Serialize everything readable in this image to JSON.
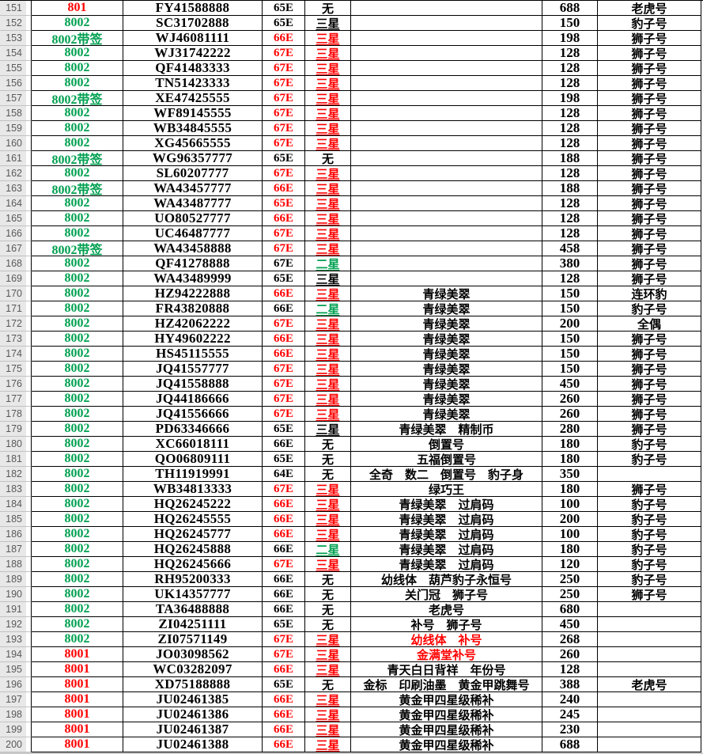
{
  "palette": {
    "red": "#FF0000",
    "green": "#00A050",
    "black": "#000000",
    "headerBg": "#E8E8E8",
    "headerText": "#595959",
    "gridline": "#000000",
    "bottomStrip": "#C9C9C9"
  },
  "table": {
    "rows": [
      {
        "num": "151",
        "code": "801",
        "codeColor": "red",
        "serial": "FY41588888",
        "ed": "65E",
        "edColor": "black",
        "star": "无",
        "starColor": "black",
        "desc": "",
        "descColor": "black",
        "price": "688",
        "type": "老虎号"
      },
      {
        "num": "152",
        "code": "8002",
        "codeColor": "green",
        "serial": "SC31702888",
        "ed": "65E",
        "edColor": "black",
        "star": "三星",
        "starColor": "black",
        "desc": "",
        "descColor": "black",
        "price": "150",
        "type": "豹子号"
      },
      {
        "num": "153",
        "code": "8002带签",
        "codeColor": "green",
        "serial": "WJ46081111",
        "ed": "66E",
        "edColor": "red",
        "star": "三星",
        "starColor": "red",
        "desc": "",
        "descColor": "black",
        "price": "198",
        "type": "狮子号"
      },
      {
        "num": "154",
        "code": "8002",
        "codeColor": "green",
        "serial": "WJ31742222",
        "ed": "67E",
        "edColor": "red",
        "star": "三星",
        "starColor": "red",
        "desc": "",
        "descColor": "black",
        "price": "128",
        "type": "狮子号"
      },
      {
        "num": "155",
        "code": "8002",
        "codeColor": "green",
        "serial": "QF41483333",
        "ed": "67E",
        "edColor": "red",
        "star": "三星",
        "starColor": "red",
        "desc": "",
        "descColor": "black",
        "price": "128",
        "type": "狮子号"
      },
      {
        "num": "156",
        "code": "8002",
        "codeColor": "green",
        "serial": "TN51423333",
        "ed": "67E",
        "edColor": "red",
        "star": "三星",
        "starColor": "red",
        "desc": "",
        "descColor": "black",
        "price": "128",
        "type": "狮子号"
      },
      {
        "num": "157",
        "code": "8002带签",
        "codeColor": "green",
        "serial": "XE47425555",
        "ed": "67E",
        "edColor": "red",
        "star": "三星",
        "starColor": "red",
        "desc": "",
        "descColor": "black",
        "price": "198",
        "type": "狮子号"
      },
      {
        "num": "158",
        "code": "8002",
        "codeColor": "green",
        "serial": "WF89145555",
        "ed": "67E",
        "edColor": "red",
        "star": "三星",
        "starColor": "red",
        "desc": "",
        "descColor": "black",
        "price": "128",
        "type": "狮子号"
      },
      {
        "num": "159",
        "code": "8002",
        "codeColor": "green",
        "serial": "WB34845555",
        "ed": "67E",
        "edColor": "red",
        "star": "三星",
        "starColor": "red",
        "desc": "",
        "descColor": "black",
        "price": "128",
        "type": "狮子号"
      },
      {
        "num": "160",
        "code": "8002",
        "codeColor": "green",
        "serial": "XG45665555",
        "ed": "67E",
        "edColor": "red",
        "star": "三星",
        "starColor": "red",
        "desc": "",
        "descColor": "black",
        "price": "128",
        "type": "狮子号"
      },
      {
        "num": "161",
        "code": "8002带签",
        "codeColor": "green",
        "serial": "WG96357777",
        "ed": "65E",
        "edColor": "black",
        "star": "无",
        "starColor": "black",
        "desc": "",
        "descColor": "black",
        "price": "188",
        "type": "狮子号"
      },
      {
        "num": "162",
        "code": "8002",
        "codeColor": "green",
        "serial": "SL60207777",
        "ed": "67E",
        "edColor": "red",
        "star": "三星",
        "starColor": "red",
        "desc": "",
        "descColor": "black",
        "price": "128",
        "type": "狮子号"
      },
      {
        "num": "163",
        "code": "8002带签",
        "codeColor": "green",
        "serial": "WA43457777",
        "ed": "66E",
        "edColor": "red",
        "star": "三星",
        "starColor": "red",
        "desc": "",
        "descColor": "black",
        "price": "188",
        "type": "狮子号"
      },
      {
        "num": "164",
        "code": "8002",
        "codeColor": "green",
        "serial": "WA43487777",
        "ed": "65E",
        "edColor": "red",
        "star": "三星",
        "starColor": "red",
        "desc": "",
        "descColor": "black",
        "price": "128",
        "type": "狮子号"
      },
      {
        "num": "165",
        "code": "8002",
        "codeColor": "green",
        "serial": "UO80527777",
        "ed": "66E",
        "edColor": "red",
        "star": "三星",
        "starColor": "red",
        "desc": "",
        "descColor": "black",
        "price": "128",
        "type": "狮子号"
      },
      {
        "num": "166",
        "code": "8002",
        "codeColor": "green",
        "serial": "UC46487777",
        "ed": "67E",
        "edColor": "red",
        "star": "三星",
        "starColor": "red",
        "desc": "",
        "descColor": "black",
        "price": "128",
        "type": "狮子号"
      },
      {
        "num": "167",
        "code": "8002带签",
        "codeColor": "green",
        "serial": "WA43458888",
        "ed": "67E",
        "edColor": "red",
        "star": "三星",
        "starColor": "red",
        "desc": "",
        "descColor": "black",
        "price": "458",
        "type": "狮子号"
      },
      {
        "num": "168",
        "code": "8002",
        "codeColor": "green",
        "serial": "QF41278888",
        "ed": "67E",
        "edColor": "black",
        "star": "二星",
        "starColor": "green",
        "desc": "",
        "descColor": "black",
        "price": "380",
        "type": "狮子号"
      },
      {
        "num": "169",
        "code": "8002",
        "codeColor": "green",
        "serial": "WA43489999",
        "ed": "65E",
        "edColor": "black",
        "star": "三星",
        "starColor": "black",
        "desc": "",
        "descColor": "black",
        "price": "128",
        "type": "狮子号"
      },
      {
        "num": "170",
        "code": "8002",
        "codeColor": "green",
        "serial": "HZ94222888",
        "ed": "66E",
        "edColor": "red",
        "star": "三星",
        "starColor": "red",
        "desc": "青绿美翠",
        "descColor": "black",
        "price": "150",
        "type": "连环豹"
      },
      {
        "num": "171",
        "code": "8002",
        "codeColor": "green",
        "serial": "FR43820888",
        "ed": "66E",
        "edColor": "black",
        "star": "二星",
        "starColor": "green",
        "desc": "青绿美翠",
        "descColor": "black",
        "price": "150",
        "type": "豹子号"
      },
      {
        "num": "172",
        "code": "8002",
        "codeColor": "green",
        "serial": "HZ42062222",
        "ed": "67E",
        "edColor": "red",
        "star": "三星",
        "starColor": "red",
        "desc": "青绿美翠",
        "descColor": "black",
        "price": "200",
        "type": "全偶"
      },
      {
        "num": "173",
        "code": "8002",
        "codeColor": "green",
        "serial": "HY49602222",
        "ed": "66E",
        "edColor": "red",
        "star": "三星",
        "starColor": "red",
        "desc": "青绿美翠",
        "descColor": "black",
        "price": "150",
        "type": "狮子号"
      },
      {
        "num": "174",
        "code": "8002",
        "codeColor": "green",
        "serial": "HS45115555",
        "ed": "66E",
        "edColor": "red",
        "star": "三星",
        "starColor": "red",
        "desc": "青绿美翠",
        "descColor": "black",
        "price": "150",
        "type": "狮子号"
      },
      {
        "num": "175",
        "code": "8002",
        "codeColor": "green",
        "serial": "JQ41557777",
        "ed": "67E",
        "edColor": "red",
        "star": "三星",
        "starColor": "red",
        "desc": "青绿美翠",
        "descColor": "black",
        "price": "150",
        "type": "狮子号"
      },
      {
        "num": "176",
        "code": "8002",
        "codeColor": "green",
        "serial": "JQ41558888",
        "ed": "67E",
        "edColor": "red",
        "star": "三星",
        "starColor": "red",
        "desc": "青绿美翠",
        "descColor": "black",
        "price": "450",
        "type": "狮子号"
      },
      {
        "num": "177",
        "code": "8002",
        "codeColor": "green",
        "serial": "JQ44186666",
        "ed": "67E",
        "edColor": "red",
        "star": "三星",
        "starColor": "red",
        "desc": "青绿美翠",
        "descColor": "black",
        "price": "260",
        "type": "狮子号"
      },
      {
        "num": "178",
        "code": "8002",
        "codeColor": "green",
        "serial": "JQ41556666",
        "ed": "67E",
        "edColor": "red",
        "star": "三星",
        "starColor": "red",
        "desc": "青绿美翠",
        "descColor": "black",
        "price": "260",
        "type": "狮子号"
      },
      {
        "num": "179",
        "code": "8002",
        "codeColor": "green",
        "serial": "PD63346666",
        "ed": "65E",
        "edColor": "black",
        "star": "三星",
        "starColor": "black",
        "desc": "青绿美翠　精制币",
        "descColor": "black",
        "price": "280",
        "type": "狮子号"
      },
      {
        "num": "180",
        "code": "8002",
        "codeColor": "green",
        "serial": "XC66018111",
        "ed": "66E",
        "edColor": "black",
        "star": "无",
        "starColor": "black",
        "desc": "倒置号",
        "descColor": "black",
        "price": "180",
        "type": "豹子号"
      },
      {
        "num": "181",
        "code": "8002",
        "codeColor": "green",
        "serial": "QO06809111",
        "ed": "65E",
        "edColor": "black",
        "star": "无",
        "starColor": "black",
        "desc": "五福倒置号",
        "descColor": "black",
        "price": "180",
        "type": "豹子号"
      },
      {
        "num": "182",
        "code": "8002",
        "codeColor": "green",
        "serial": "TH11919991",
        "ed": "64E",
        "edColor": "black",
        "star": "无",
        "starColor": "black",
        "desc": "全奇　数二　倒置号　豹子身",
        "descColor": "black",
        "price": "350",
        "type": ""
      },
      {
        "num": "183",
        "code": "8002",
        "codeColor": "green",
        "serial": "WB34813333",
        "ed": "67E",
        "edColor": "red",
        "star": "三星",
        "starColor": "red",
        "desc": "绿巧王",
        "descColor": "black",
        "price": "180",
        "type": "狮子号"
      },
      {
        "num": "184",
        "code": "8002",
        "codeColor": "green",
        "serial": "HQ26245222",
        "ed": "66E",
        "edColor": "red",
        "star": "三星",
        "starColor": "red",
        "desc": "青绿美翠　过肩码",
        "descColor": "black",
        "price": "100",
        "type": "豹子号"
      },
      {
        "num": "185",
        "code": "8002",
        "codeColor": "green",
        "serial": "HQ26245555",
        "ed": "66E",
        "edColor": "red",
        "star": "三星",
        "starColor": "red",
        "desc": "青绿美翠　过肩码",
        "descColor": "black",
        "price": "200",
        "type": "豹子号"
      },
      {
        "num": "186",
        "code": "8002",
        "codeColor": "green",
        "serial": "HQ26245777",
        "ed": "66E",
        "edColor": "red",
        "star": "三星",
        "starColor": "red",
        "desc": "青绿美翠　过肩码",
        "descColor": "black",
        "price": "100",
        "type": "豹子号"
      },
      {
        "num": "187",
        "code": "8002",
        "codeColor": "green",
        "serial": "HQ26245888",
        "ed": "66E",
        "edColor": "black",
        "star": "二星",
        "starColor": "green",
        "desc": "青绿美翠　过肩码",
        "descColor": "black",
        "price": "180",
        "type": "豹子号"
      },
      {
        "num": "188",
        "code": "8002",
        "codeColor": "green",
        "serial": "HQ26245666",
        "ed": "67E",
        "edColor": "red",
        "star": "三星",
        "starColor": "red",
        "desc": "青绿美翠　过肩码",
        "descColor": "black",
        "price": "120",
        "type": "豹子号"
      },
      {
        "num": "189",
        "code": "8002",
        "codeColor": "green",
        "serial": "RH95200333",
        "ed": "66E",
        "edColor": "black",
        "star": "无",
        "starColor": "black",
        "desc": "幼线体　葫芦豹子永恒号",
        "descColor": "black",
        "price": "250",
        "type": "豹子号"
      },
      {
        "num": "190",
        "code": "8002",
        "codeColor": "green",
        "serial": "UK14357777",
        "ed": "66E",
        "edColor": "black",
        "star": "无",
        "starColor": "black",
        "desc": "关门冠　狮子号",
        "descColor": "black",
        "price": "250",
        "type": "狮子号"
      },
      {
        "num": "191",
        "code": "8002",
        "codeColor": "green",
        "serial": "TA36488888",
        "ed": "66E",
        "edColor": "black",
        "star": "无",
        "starColor": "black",
        "desc": "老虎号",
        "descColor": "black",
        "price": "680",
        "type": ""
      },
      {
        "num": "192",
        "code": "8002",
        "codeColor": "green",
        "serial": "ZI04251111",
        "ed": "65E",
        "edColor": "black",
        "star": "无",
        "starColor": "black",
        "desc": "补号　狮子号",
        "descColor": "black",
        "price": "450",
        "type": ""
      },
      {
        "num": "193",
        "code": "8002",
        "codeColor": "green",
        "serial": "ZI07571149",
        "ed": "67E",
        "edColor": "red",
        "star": "三星",
        "starColor": "red",
        "desc": "幼线体　补号",
        "descColor": "red",
        "price": "268",
        "type": ""
      },
      {
        "num": "194",
        "code": "8001",
        "codeColor": "red",
        "serial": "JO03098562",
        "ed": "67E",
        "edColor": "red",
        "star": "三星",
        "starColor": "red",
        "desc": "金满堂补号",
        "descColor": "red",
        "price": "260",
        "type": ""
      },
      {
        "num": "195",
        "code": "8001",
        "codeColor": "red",
        "serial": "WC03282097",
        "ed": "66E",
        "edColor": "red",
        "star": "三星",
        "starColor": "red",
        "desc": "青天白日背祥　年份号",
        "descColor": "black",
        "price": "128",
        "type": ""
      },
      {
        "num": "196",
        "code": "8001",
        "codeColor": "red",
        "serial": "XD75188888",
        "ed": "65E",
        "edColor": "black",
        "star": "无",
        "starColor": "black",
        "desc": "金标　印刷油墨　黄金甲跳舞号",
        "descColor": "black",
        "price": "388",
        "type": "老虎号"
      },
      {
        "num": "197",
        "code": "8001",
        "codeColor": "red",
        "serial": "JU02461385",
        "ed": "66E",
        "edColor": "red",
        "star": "三星",
        "starColor": "red",
        "desc": "黄金甲四星级稀补",
        "descColor": "black",
        "price": "240",
        "type": ""
      },
      {
        "num": "198",
        "code": "8001",
        "codeColor": "red",
        "serial": "JU02461386",
        "ed": "66E",
        "edColor": "red",
        "star": "三星",
        "starColor": "red",
        "desc": "黄金甲四星级稀补",
        "descColor": "black",
        "price": "245",
        "type": ""
      },
      {
        "num": "199",
        "code": "8001",
        "codeColor": "red",
        "serial": "JU02461387",
        "ed": "66E",
        "edColor": "red",
        "star": "三星",
        "starColor": "red",
        "desc": "黄金甲四星级稀补",
        "descColor": "black",
        "price": "230",
        "type": ""
      },
      {
        "num": "200",
        "code": "8001",
        "codeColor": "red",
        "serial": "JU02461388",
        "ed": "66E",
        "edColor": "red",
        "star": "三星",
        "starColor": "red",
        "desc": "黄金甲四星级稀补",
        "descColor": "black",
        "price": "688",
        "type": ""
      }
    ]
  }
}
